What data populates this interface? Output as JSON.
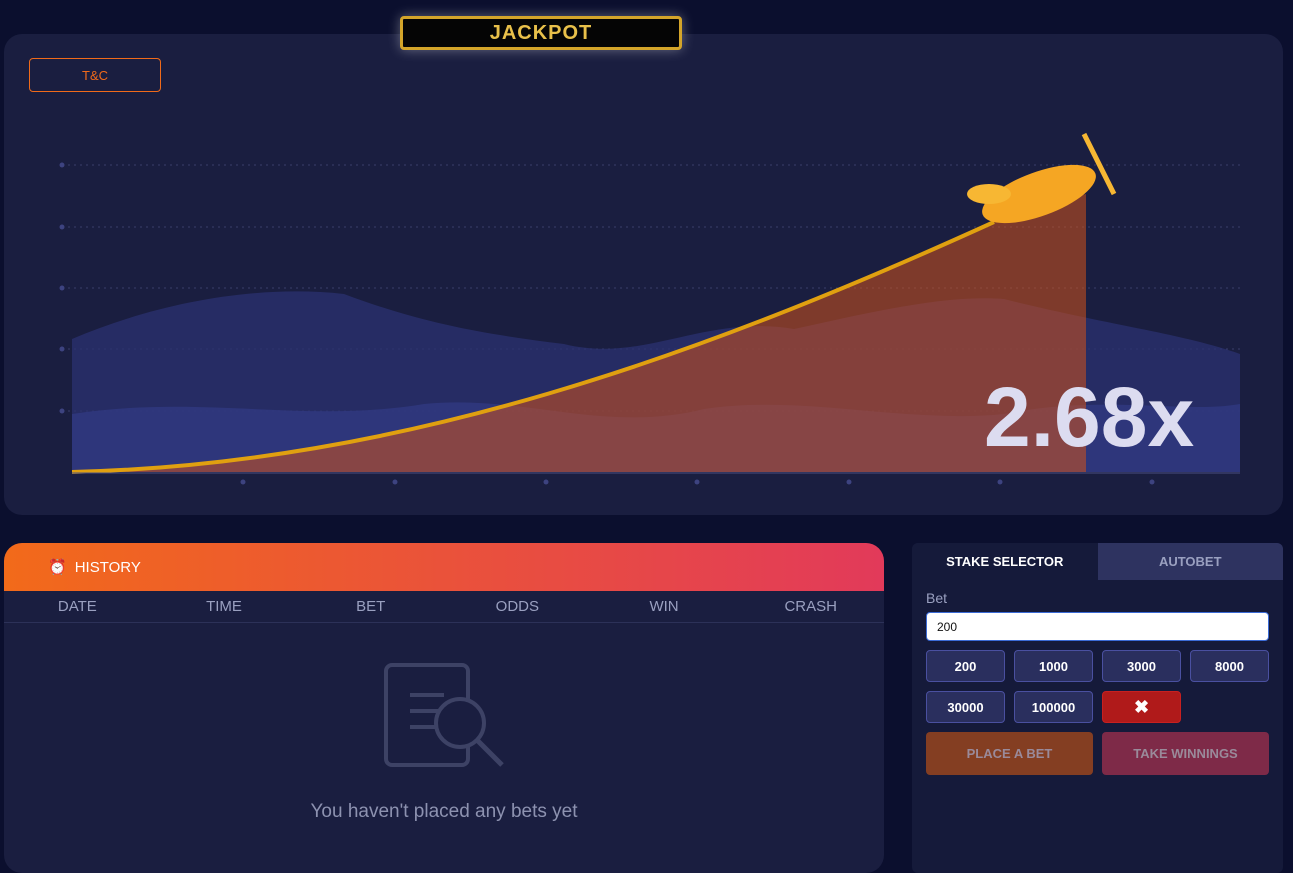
{
  "jackpot": {
    "label": "JACKPOT"
  },
  "game": {
    "tc_label": "T&C",
    "multiplier": "2.68x"
  },
  "history": {
    "title": "HISTORY",
    "columns": [
      "DATE",
      "TIME",
      "BET",
      "ODDS",
      "WIN",
      "CRASH"
    ],
    "empty_text": "You haven't placed any bets yet"
  },
  "stake": {
    "tabs": [
      "STAKE SELECTOR",
      "AUTOBET"
    ],
    "bet_label": "Bet",
    "bet_value": "200",
    "chips": [
      "200",
      "1000",
      "3000",
      "8000",
      "30000",
      "100000"
    ],
    "clear_icon": "x-icon",
    "place_bet": "PLACE A BET",
    "take_winnings": "TAKE WINNINGS"
  },
  "colors": {
    "accent": "#f26a1a",
    "danger": "#b01a1a",
    "background": "#0b0f2e"
  }
}
